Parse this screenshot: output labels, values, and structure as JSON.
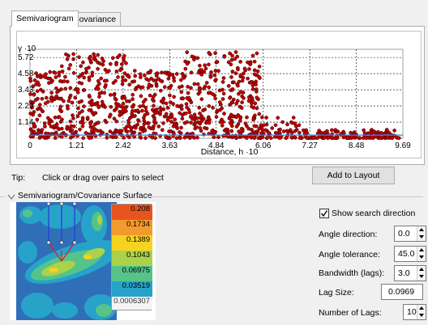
{
  "tabs": [
    {
      "label": "Semivariogram",
      "active": true
    },
    {
      "label": "Covariance",
      "active": false
    }
  ],
  "chart_data": {
    "type": "scatter",
    "title": "",
    "y_axis_label": "γ ·10",
    "xlabel": "Distance, h ·10",
    "x_ticks": [
      "0",
      "1.21",
      "2.42",
      "3.63",
      "4.84",
      "6.06",
      "7.27",
      "8.48",
      "9.69"
    ],
    "y_ticks": [
      "1.14",
      "2.29",
      "3.43",
      "4.58",
      "5.72"
    ],
    "xlim": [
      0,
      9.69
    ],
    "ylim": [
      0,
      6.3
    ],
    "grid": true,
    "marker_color": "#c00000",
    "fit_line_color": "#1e90ff",
    "note": "dense cloud of semivariogram pairs; values sampled",
    "fit_line": {
      "x": [
        0,
        9.69
      ],
      "y": [
        0.22,
        0.22
      ]
    }
  },
  "tip": {
    "label": "Tip:",
    "text": "Click or drag over pairs to select"
  },
  "add_to_layout_label": "Add to Layout",
  "surface_section_title": "Semivariogram/Covariance Surface",
  "legend": {
    "values": [
      "0.208",
      "0.1734",
      "0.1389",
      "0.1043",
      "0.06975",
      "0.03519",
      "0.0006307"
    ],
    "colors": [
      "#e8541f",
      "#f39a2c",
      "#f7d21f",
      "#aad24a",
      "#55c38a",
      "#27a3c9",
      "#2f6fb8"
    ]
  },
  "controls": {
    "show_search_direction": {
      "label": "Show search direction",
      "checked": true
    },
    "angle_direction": {
      "label": "Angle direction:",
      "value": "0.0"
    },
    "angle_tolerance": {
      "label": "Angle tolerance:",
      "value": "45.0"
    },
    "bandwidth": {
      "label": "Bandwidth (lags):",
      "value": "3.0"
    },
    "lag_size": {
      "label": "Lag Size:",
      "value": "0.0969"
    },
    "number_of_lags": {
      "label": "Number of Lags:",
      "value": "10"
    }
  }
}
